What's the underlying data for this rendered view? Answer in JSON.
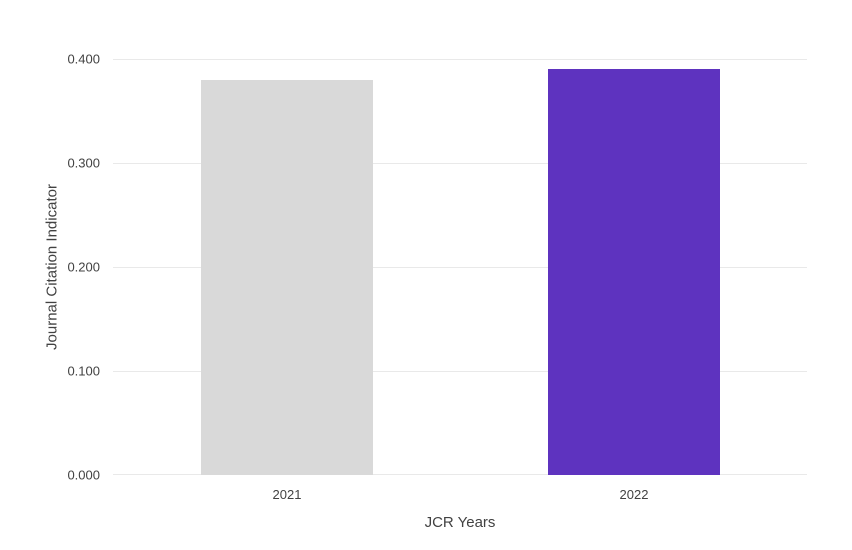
{
  "chart_data": {
    "type": "bar",
    "title": "",
    "categories": [
      "2021",
      "2022"
    ],
    "values": [
      0.38,
      0.39
    ],
    "xlabel": "JCR Years",
    "ylabel": "Journal Citation Indicator",
    "ylim": [
      0,
      0.4
    ],
    "yticks": [
      {
        "value": 0.0,
        "label": "0.000"
      },
      {
        "value": 0.1,
        "label": "0.100"
      },
      {
        "value": 0.2,
        "label": "0.200"
      },
      {
        "value": 0.3,
        "label": "0.300"
      },
      {
        "value": 0.4,
        "label": "0.400"
      }
    ],
    "grid": true,
    "legend": "none",
    "colors": {
      "bars": [
        "#d9d9d9",
        "#5e33bf"
      ],
      "gridline": "#e9e9e9",
      "text": "#424242",
      "background": "#ffffff"
    }
  }
}
